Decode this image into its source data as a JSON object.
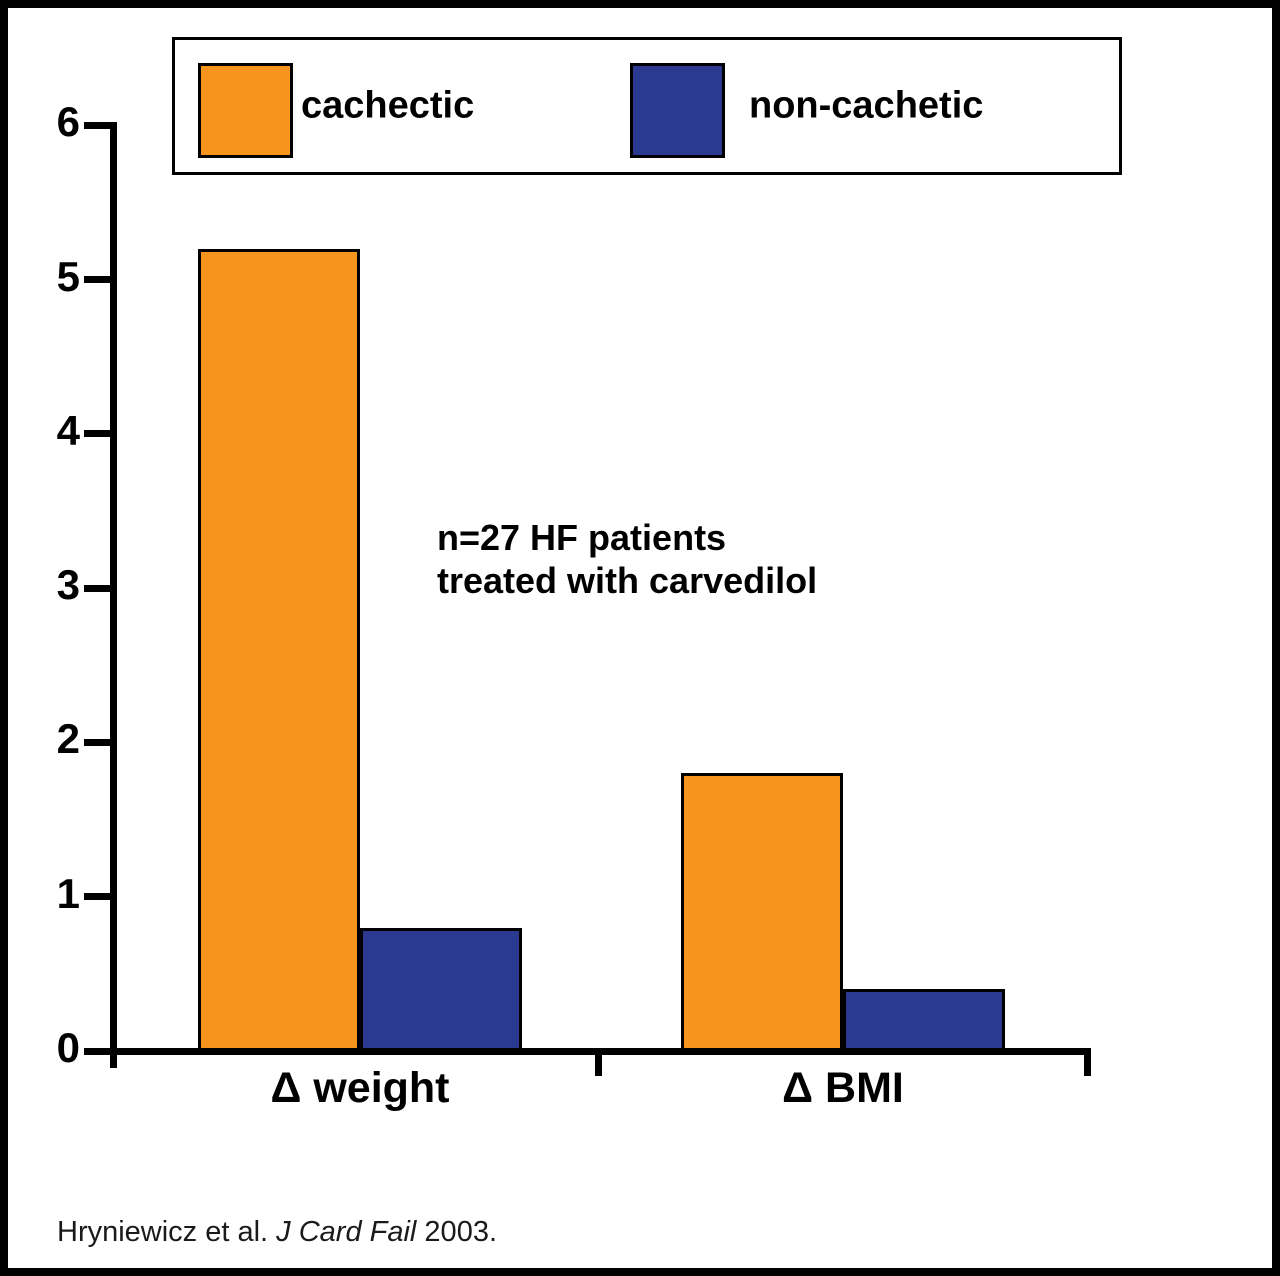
{
  "legend": {
    "items": [
      {
        "label": "cachectic",
        "color": "#F7941E"
      },
      {
        "label": "non-cachetic",
        "color": "#2B3990"
      }
    ]
  },
  "annotation": {
    "lines": [
      "n=27 HF patients",
      "treated with carvedilol"
    ]
  },
  "citation": {
    "prefix": "Hryniewicz et al. ",
    "journal": "J Card Fail",
    "suffix": " 2003."
  },
  "chart_data": {
    "type": "bar",
    "categories": [
      "Δ weight",
      "Δ BMI"
    ],
    "series": [
      {
        "name": "cachectic",
        "color": "#F7941E",
        "values": [
          5.2,
          1.8
        ]
      },
      {
        "name": "non-cachetic",
        "color": "#2B3990",
        "values": [
          0.8,
          0.4
        ]
      }
    ],
    "title": "",
    "xlabel": "",
    "ylabel": "",
    "ylim": [
      0,
      6
    ],
    "yticks": [
      0,
      1,
      2,
      3,
      4,
      5,
      6
    ],
    "grid": false,
    "legend_position": "top",
    "annotation": "n=27 HF patients treated with carvedilol"
  }
}
